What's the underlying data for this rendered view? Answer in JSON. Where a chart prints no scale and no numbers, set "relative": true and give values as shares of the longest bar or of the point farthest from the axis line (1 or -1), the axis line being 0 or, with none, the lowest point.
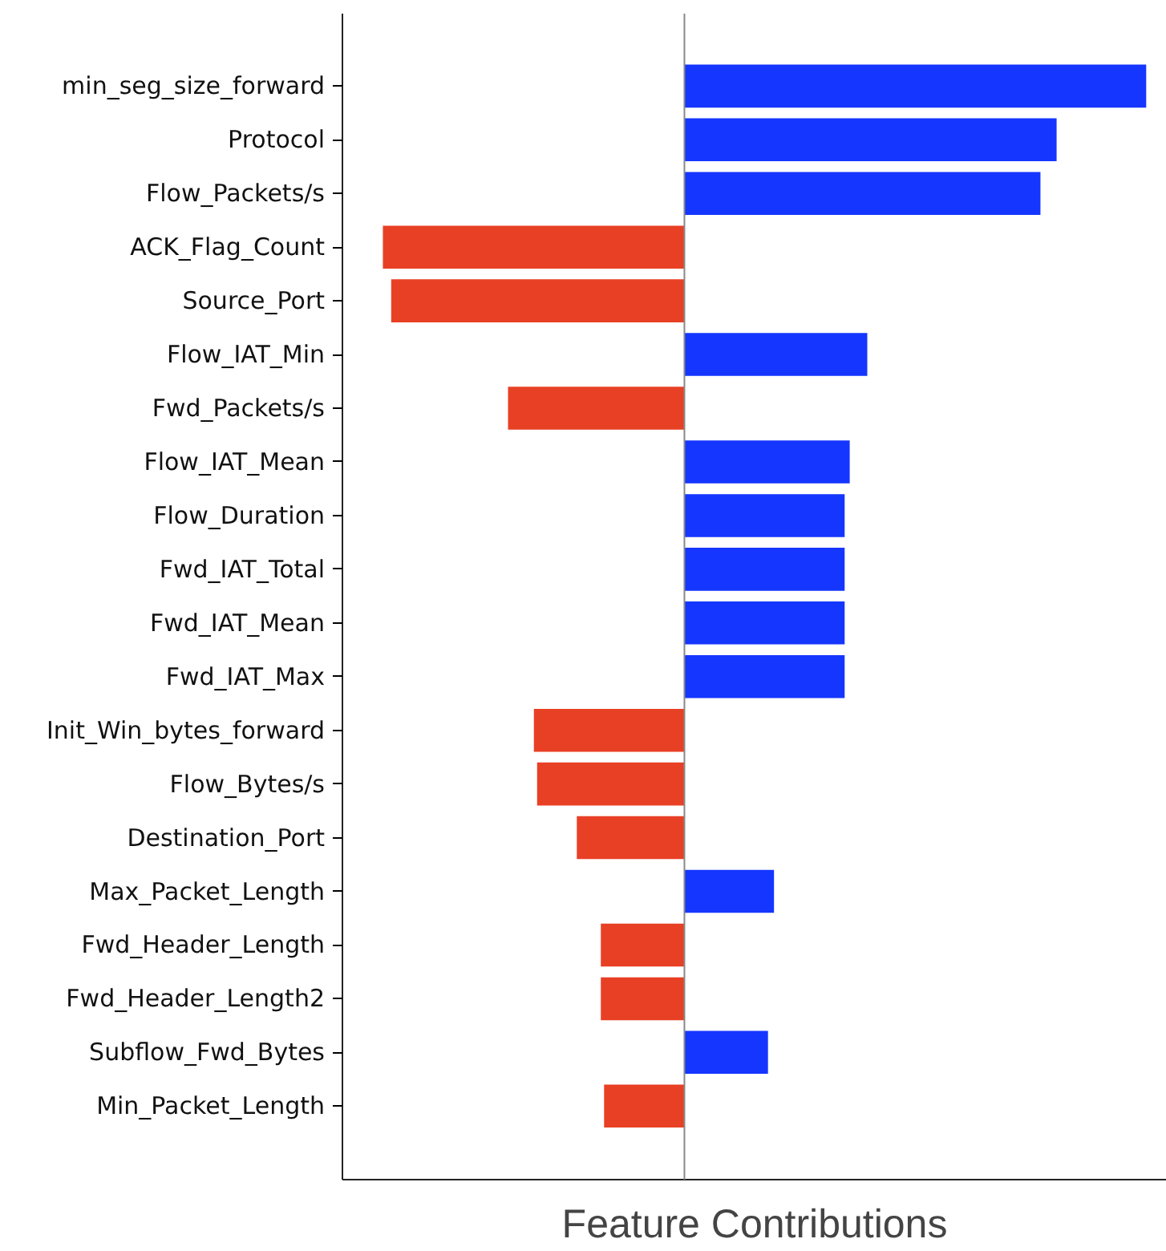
{
  "chart_data": {
    "type": "bar",
    "orientation": "horizontal",
    "relative": true,
    "xlabel": "Feature Contributions",
    "tick_labels": "y",
    "grid": false,
    "categories": [
      "min_seg_size_forward",
      "Protocol",
      "Flow_Packets/s",
      "ACK_Flag_Count",
      "Source_Port",
      "Flow_IAT_Min",
      "Fwd_Packets/s",
      "Flow_IAT_Mean",
      "Flow_Duration",
      "Fwd_IAT_Total",
      "Fwd_IAT_Mean",
      "Fwd_IAT_Max",
      "Init_Win_bytes_forward",
      "Flow_Bytes/s",
      "Destination_Port",
      "Max_Packet_Length",
      "Fwd_Header_Length",
      "Fwd_Header_Length2",
      "Subflow_Fwd_Bytes",
      "Min_Packet_Length"
    ],
    "values": [
      1,
      0.806,
      0.771,
      -0.653,
      -0.635,
      0.396,
      -0.382,
      0.358,
      0.347,
      0.347,
      0.347,
      0.347,
      -0.326,
      -0.319,
      -0.233,
      0.194,
      -0.181,
      -0.181,
      0.181,
      -0.174
    ],
    "colors": [
      "#1536ff",
      "#1536ff",
      "#1536ff",
      "#e84025",
      "#e84025",
      "#1536ff",
      "#e84025",
      "#1536ff",
      "#1536ff",
      "#1536ff",
      "#1536ff",
      "#1536ff",
      "#e84025",
      "#e84025",
      "#e84025",
      "#1536ff",
      "#e84025",
      "#e84025",
      "#1536ff",
      "#e84025"
    ]
  }
}
